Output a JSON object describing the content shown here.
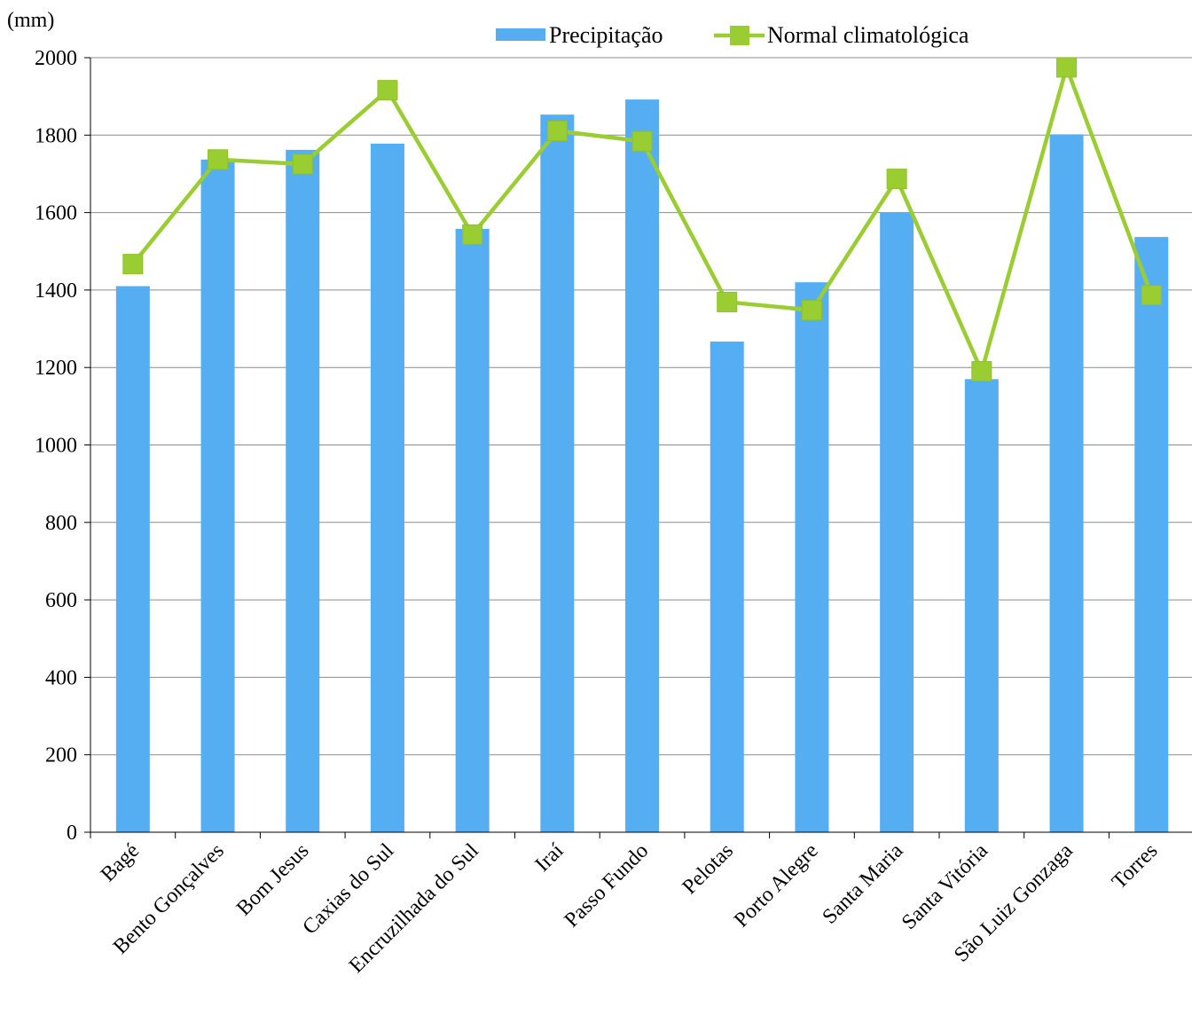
{
  "chart_data": {
    "type": "bar",
    "unit_label": "(mm)",
    "categories": [
      "Bagé",
      "Bento Gonçalves",
      "Bom Jesus",
      "Caxias do Sul",
      "Encruzilhada do Sul",
      "Iraí",
      "Passo Fundo",
      "Pelotas",
      "Porto Alegre",
      "Santa Maria",
      "Santa Vitória",
      "São Luiz Gonzaga",
      "Torres"
    ],
    "series": [
      {
        "name": "Precipitação",
        "type": "bar",
        "color": "#56AEF2",
        "values": [
          1410,
          1737,
          1762,
          1778,
          1558,
          1853,
          1892,
          1267,
          1420,
          1601,
          1170,
          1802,
          1537
        ]
      },
      {
        "name": "Normal climatológica",
        "type": "line",
        "color": "#9ACD32",
        "values": [
          1467,
          1737,
          1725,
          1916,
          1543,
          1811,
          1784,
          1369,
          1348,
          1687,
          1190,
          1975,
          1387
        ]
      }
    ],
    "ylim": [
      0,
      2000
    ],
    "yticks": [
      0,
      200,
      400,
      600,
      800,
      1000,
      1200,
      1400,
      1600,
      1800,
      2000
    ],
    "grid": true,
    "legend_position": "top"
  }
}
